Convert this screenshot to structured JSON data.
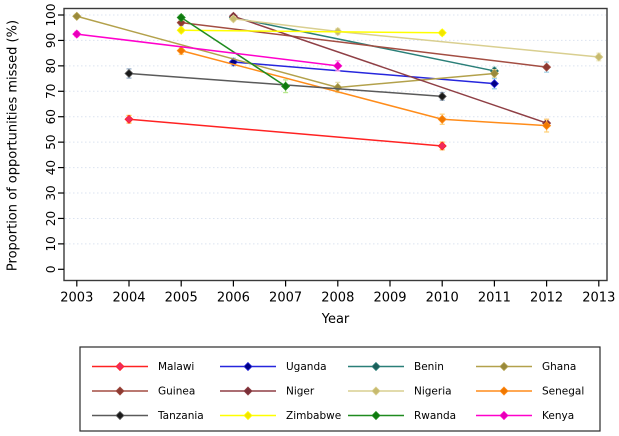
{
  "chart_data": {
    "type": "line",
    "title": "",
    "xlabel": "Year",
    "ylabel": "Proportion of opportunities missed (%)",
    "x_ticks": [
      2003,
      2004,
      2005,
      2006,
      2007,
      2008,
      2009,
      2010,
      2011,
      2012,
      2013
    ],
    "y_ticks": [
      0,
      10,
      20,
      30,
      40,
      50,
      60,
      70,
      80,
      90,
      100
    ],
    "xlim": [
      2002.75,
      2013.15
    ],
    "ylim": [
      -4.5,
      102.8
    ],
    "grid": "horizontal-dotted",
    "gridline_color": "#dbe3f0",
    "axis_color": "#3a3a3a",
    "legend_position": "bottom-box",
    "legend_columns": 4,
    "series": [
      {
        "name": "Malawi",
        "color": "#ff2222",
        "marker_color": "#ef2b5d",
        "err_color": "#ffc04d",
        "points": [
          {
            "year": 2004,
            "value": 59,
            "ci": 1.5
          },
          {
            "year": 2010,
            "value": 48.5,
            "ci": 1.5
          }
        ]
      },
      {
        "name": "Uganda",
        "color": "#2626dd",
        "marker_color": "#000085",
        "err_color": "#9ad0ea",
        "points": [
          {
            "year": 2006,
            "value": 81.5,
            "ci": 1.5
          },
          {
            "year": 2011,
            "value": 73,
            "ci": 2
          }
        ]
      },
      {
        "name": "Benin",
        "color": "#2a7f78",
        "marker_color": "#1d5f5a",
        "err_color": "#bfe0dd",
        "points": [
          {
            "year": 2006,
            "value": 99,
            "ci": 0.8
          },
          {
            "year": 2011,
            "value": 78,
            "ci": 1.5
          }
        ]
      },
      {
        "name": "Ghana",
        "color": "#b3a14b",
        "marker_color": "#99893b",
        "err_color": "#e6dfb0",
        "points": [
          {
            "year": 2003,
            "value": 99.5,
            "ci": 0.8
          },
          {
            "year": 2008,
            "value": 71.5,
            "ci": 2
          },
          {
            "year": 2011,
            "value": 77,
            "ci": 1.5
          }
        ]
      },
      {
        "name": "Guinea",
        "color": "#a34d42",
        "marker_color": "#8c3a32",
        "err_color": "#a8d4e8",
        "points": [
          {
            "year": 2005,
            "value": 97,
            "ci": 1.2
          },
          {
            "year": 2012,
            "value": 79.5,
            "ci": 2
          }
        ]
      },
      {
        "name": "Niger",
        "color": "#8f3f45",
        "marker_color": "#7a2f38",
        "err_color": "#e0b4c0",
        "points": [
          {
            "year": 2006,
            "value": 99.5,
            "ci": 0.8
          },
          {
            "year": 2012,
            "value": 57.5,
            "ci": 1.5
          }
        ]
      },
      {
        "name": "Nigeria",
        "color": "#d9cf90",
        "marker_color": "#c7ba6e",
        "err_color": "#efe9c4",
        "points": [
          {
            "year": 2006,
            "value": 98.5,
            "ci": 0.8
          },
          {
            "year": 2008,
            "value": 93.5,
            "ci": 1.2
          },
          {
            "year": 2013,
            "value": 83.5,
            "ci": 1.5
          }
        ]
      },
      {
        "name": "Senegal",
        "color": "#ff8c1a",
        "marker_color": "#f07800",
        "err_color": "#ffd27f",
        "points": [
          {
            "year": 2005,
            "value": 86,
            "ci": 1.5
          },
          {
            "year": 2010,
            "value": 59,
            "ci": 2
          },
          {
            "year": 2012,
            "value": 56.5,
            "ci": 2.5
          }
        ]
      },
      {
        "name": "Tanzania",
        "color": "#5a5a5a",
        "marker_color": "#1a1a1a",
        "err_color": "#9ab0c8",
        "points": [
          {
            "year": 2004,
            "value": 77,
            "ci": 1.8
          },
          {
            "year": 2010,
            "value": 68,
            "ci": 1.5
          }
        ]
      },
      {
        "name": "Zimbabwe",
        "color": "#ffff00",
        "marker_color": "#f2e400",
        "err_color": "#ffffa8",
        "points": [
          {
            "year": 2005,
            "value": 94,
            "ci": 1
          },
          {
            "year": 2010,
            "value": 93,
            "ci": 1
          }
        ]
      },
      {
        "name": "Rwanda",
        "color": "#1f8b1f",
        "marker_color": "#0f7a0f",
        "err_color": "#b8e890",
        "points": [
          {
            "year": 2005,
            "value": 99,
            "ci": 1
          },
          {
            "year": 2007,
            "value": 72,
            "ci": 2.5
          }
        ]
      },
      {
        "name": "Kenya",
        "color": "#ff00cc",
        "marker_color": "#e600b8",
        "err_color": "#ffa0e8",
        "points": [
          {
            "year": 2003,
            "value": 92.5,
            "ci": 1
          },
          {
            "year": 2008,
            "value": 80,
            "ci": 2
          }
        ]
      }
    ]
  }
}
